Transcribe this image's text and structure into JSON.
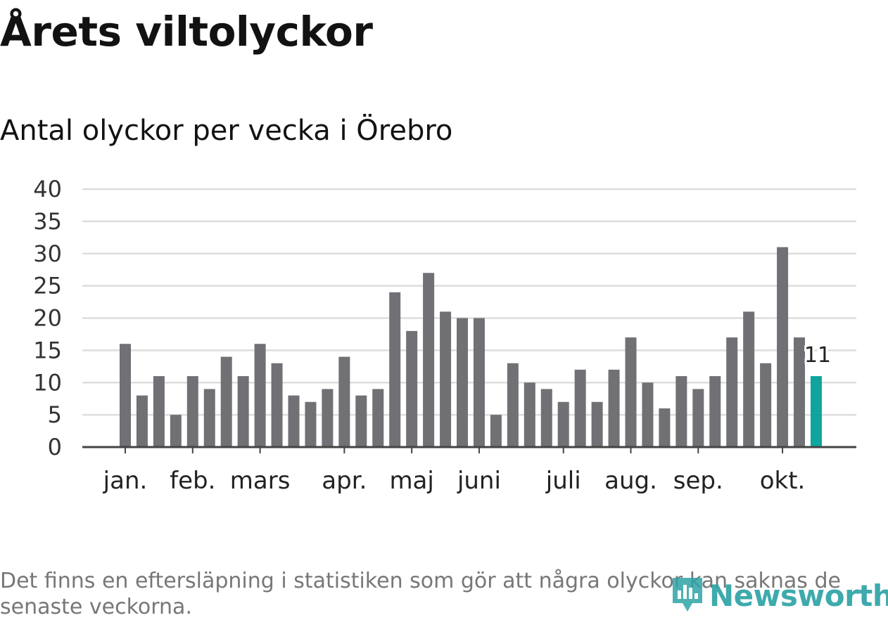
{
  "title": "Årets viltolyckor",
  "subtitle": "Antal olyckor per vecka i Örebro",
  "note": "Det finns en eftersläpning i statistiken som gör att några olyckor kan saknas de senaste veckorna.",
  "brand": "Newsworthy",
  "colors": {
    "bar": "#707075",
    "highlight": "#0fa49d",
    "grid": "#dddddd",
    "axis": "#444444",
    "brand": "#2ea3a6"
  },
  "chart_data": {
    "type": "bar",
    "title": "Årets viltolyckor",
    "subtitle": "Antal olyckor per vecka i Örebro",
    "xlabel": "",
    "ylabel": "",
    "ylim": [
      0,
      40
    ],
    "y_ticks": [
      0,
      5,
      10,
      15,
      20,
      25,
      30,
      35,
      40
    ],
    "grid": true,
    "month_labels": [
      {
        "label": "jan.",
        "week": 1
      },
      {
        "label": "feb.",
        "week": 5
      },
      {
        "label": "mars",
        "week": 9
      },
      {
        "label": "apr.",
        "week": 14
      },
      {
        "label": "maj",
        "week": 18
      },
      {
        "label": "juni",
        "week": 22
      },
      {
        "label": "juli",
        "week": 27
      },
      {
        "label": "aug.",
        "week": 31
      },
      {
        "label": "sep.",
        "week": 35
      },
      {
        "label": "okt.",
        "week": 40
      }
    ],
    "values": [
      16,
      8,
      11,
      5,
      11,
      9,
      14,
      11,
      16,
      13,
      8,
      7,
      9,
      14,
      8,
      9,
      24,
      18,
      27,
      21,
      20,
      20,
      5,
      13,
      10,
      9,
      7,
      12,
      7,
      12,
      17,
      10,
      6,
      11,
      9,
      11,
      17,
      21,
      13,
      31,
      17,
      11
    ],
    "highlight_index": 41,
    "highlight_label": "11"
  }
}
